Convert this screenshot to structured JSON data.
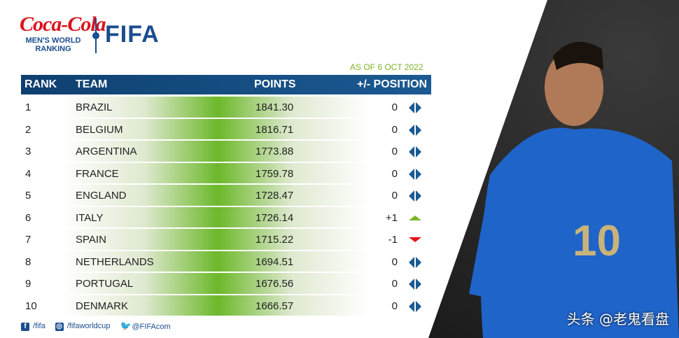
{
  "brand": {
    "sponsor": "Coca-Cola",
    "subtitle_line1": "MEN'S WORLD",
    "subtitle_line2": "RANKING",
    "org": "FIFA"
  },
  "as_of": "AS OF 6 OCT 2022",
  "headers": {
    "rank": "RANK",
    "team": "TEAM",
    "points": "POINTS",
    "position": "+/- POSITION"
  },
  "rows": [
    {
      "rank": "1",
      "team": "BRAZIL",
      "points": "1841.30",
      "change": "0",
      "icon": "unchanged"
    },
    {
      "rank": "2",
      "team": "BELGIUM",
      "points": "1816.71",
      "change": "0",
      "icon": "unchanged"
    },
    {
      "rank": "3",
      "team": "ARGENTINA",
      "points": "1773.88",
      "change": "0",
      "icon": "unchanged"
    },
    {
      "rank": "4",
      "team": "FRANCE",
      "points": "1759.78",
      "change": "0",
      "icon": "unchanged"
    },
    {
      "rank": "5",
      "team": "ENGLAND",
      "points": "1728.47",
      "change": "0",
      "icon": "unchanged"
    },
    {
      "rank": "6",
      "team": "ITALY",
      "points": "1726.14",
      "change": "+1",
      "icon": "up"
    },
    {
      "rank": "7",
      "team": "SPAIN",
      "points": "1715.22",
      "change": "-1",
      "icon": "down"
    },
    {
      "rank": "8",
      "team": "NETHERLANDS",
      "points": "1694.51",
      "change": "0",
      "icon": "unchanged"
    },
    {
      "rank": "9",
      "team": "PORTUGAL",
      "points": "1676.56",
      "change": "0",
      "icon": "unchanged"
    },
    {
      "rank": "10",
      "team": "DENMARK",
      "points": "1666.57",
      "change": "0",
      "icon": "unchanged"
    }
  ],
  "social": {
    "facebook": "/fifa",
    "instagram": "/fifaworldcup",
    "twitter": "@FIFAcom"
  },
  "photo": {
    "jersey_number": "10"
  },
  "watermark": "头条 @老鬼看盘",
  "colors": {
    "primary": "#1a4d8f",
    "up": "#7bb526",
    "down": "#e3151b"
  }
}
